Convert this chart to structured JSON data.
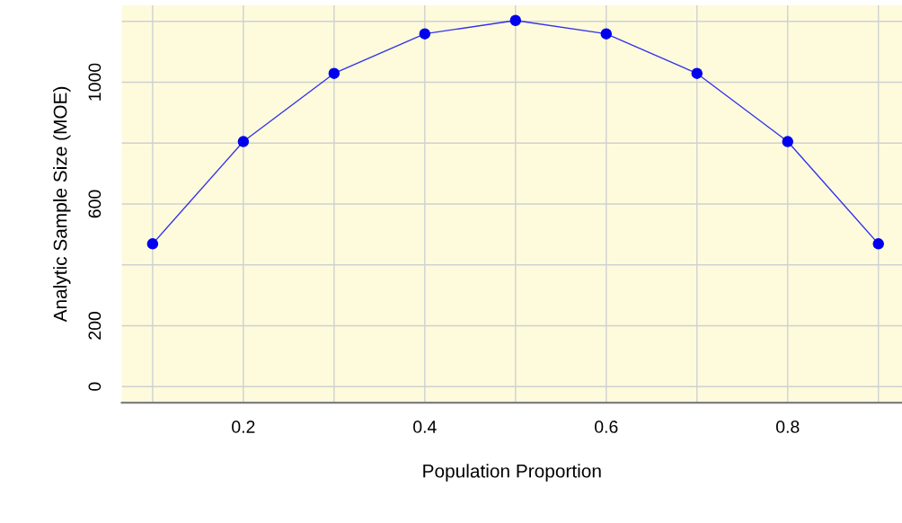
{
  "chart_data": {
    "type": "line",
    "xlabel": "Population Proportion",
    "ylabel": "Analytic Sample Size (MOE)",
    "x": [
      0.1,
      0.2,
      0.3,
      0.4,
      0.5,
      0.6,
      0.7,
      0.8,
      0.9
    ],
    "series": [
      {
        "color": "#0000ee",
        "values": [
          469,
          805,
          1029,
          1159,
          1203,
          1159,
          1029,
          805,
          469
        ]
      }
    ],
    "xlim": [
      0.066,
      0.926
    ],
    "ylim": [
      -53,
      1253
    ],
    "xticks": [
      {
        "value": 0.1,
        "label": null
      },
      0.2,
      {
        "value": 0.3,
        "label": null
      },
      0.4,
      {
        "value": 0.5,
        "label": null
      },
      0.6,
      {
        "value": 0.7,
        "label": null
      },
      0.8,
      {
        "value": 0.9,
        "label": null
      }
    ],
    "yticks": [
      0,
      200,
      {
        "value": 400,
        "label": null
      },
      600,
      {
        "value": 800,
        "label": null
      },
      1000,
      {
        "value": 1200,
        "label": null
      }
    ],
    "grid": true,
    "marker": "circle",
    "line_style": "solid"
  }
}
